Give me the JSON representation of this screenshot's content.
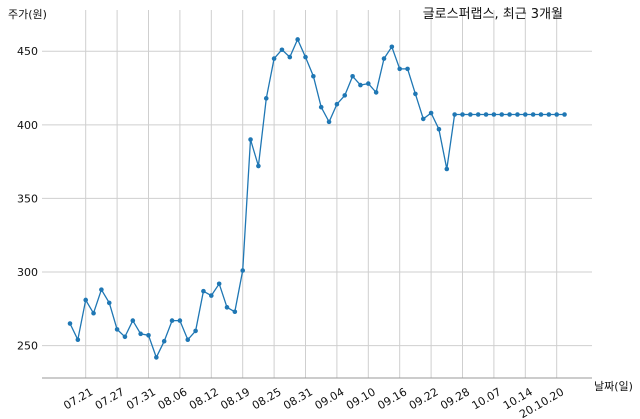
{
  "chart_data": {
    "type": "line",
    "title": "글로스퍼랩스, 최근 3개월",
    "xlabel": "날짜(일)",
    "ylabel": "주가(원)",
    "ylim": [
      228,
      478
    ],
    "grid": true,
    "y_ticks": [
      250,
      300,
      350,
      400,
      450
    ],
    "x_tick_labels": [
      "07.21",
      "07.27",
      "07.31",
      "08.06",
      "08.12",
      "08.19",
      "08.25",
      "08.31",
      "09.04",
      "09.10",
      "09.16",
      "09.22",
      "09.28",
      "10.07",
      "10.14",
      "20.10.20"
    ],
    "x_tick_index": [
      2,
      6,
      10,
      14,
      18,
      22,
      26,
      30,
      34,
      38,
      42,
      46,
      50,
      54,
      58,
      62
    ],
    "series": [
      {
        "color": "#1f77b4",
        "values": [
          265,
          254,
          281,
          272,
          288,
          279,
          261,
          256,
          267,
          258,
          257,
          242,
          253,
          267,
          267,
          254,
          260,
          287,
          284,
          292,
          276,
          273,
          301,
          390,
          372,
          418,
          445,
          451,
          446,
          458,
          446,
          433,
          412,
          402,
          414,
          420,
          433,
          427,
          428,
          422,
          445,
          453,
          438,
          438,
          421,
          404,
          408,
          397,
          370,
          407,
          407,
          407,
          407,
          407,
          407,
          407,
          407,
          407,
          407,
          407,
          407,
          407,
          407,
          407
        ]
      }
    ]
  }
}
